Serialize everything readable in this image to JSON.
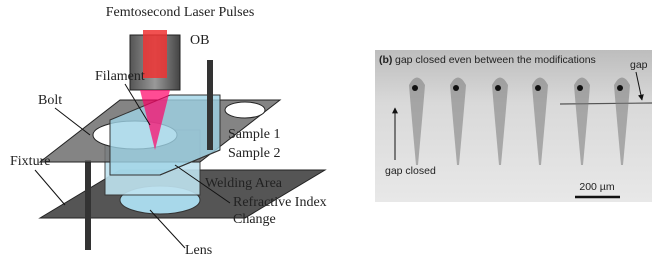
{
  "left_panel": {
    "title": "Femtosecond Laser Pulses",
    "labels": {
      "ob": "OB",
      "filament": "Filament",
      "bolt": "Bolt",
      "sample1": "Sample 1",
      "sample2": "Sample 2",
      "fixture": "Fixture",
      "welding_area": "Welding Area",
      "refractive_index_change": [
        "Refractive Index",
        "Change"
      ],
      "lens": "Lens"
    }
  },
  "right_panel": {
    "panel_label": "(b)",
    "caption": "gap closed even between the modifications",
    "gap": "gap",
    "gap_closed": "gap closed",
    "scale_bar": "200 µm"
  }
}
